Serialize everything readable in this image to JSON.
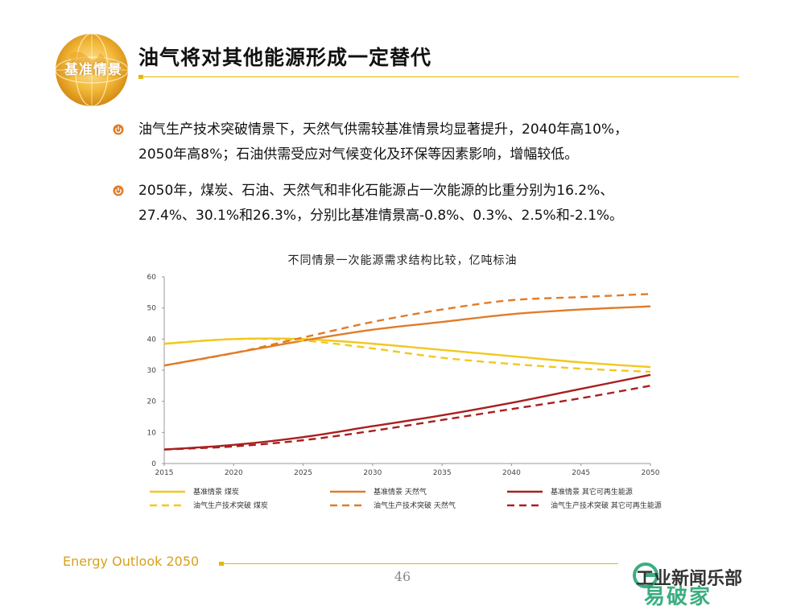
{
  "header": {
    "logo_label": "基准情景",
    "title": "油气将对其他能源形成一定替代"
  },
  "bullets": [
    {
      "line1": "油气生产技术突破情景下，天然气供需较基准情景均显著提升，2040年高10%，",
      "line2": "2050年高8%；石油供需受应对气候变化及环保等因素影响，增幅较低。"
    },
    {
      "line1": "2050年，煤炭、石油、天然气和非化石能源占一次能源的比重分别为16.2%、",
      "line2": "27.4%、30.1%和26.3%，分别比基准情景高-0.8%、0.3%、2.5%和-2.1%。"
    }
  ],
  "chart_data": {
    "type": "line",
    "title": "不同情景一次能源需求结构比较，亿吨标油",
    "xlabel": "",
    "ylabel": "",
    "x": [
      2015,
      2020,
      2025,
      2030,
      2035,
      2040,
      2045,
      2050
    ],
    "xlim": [
      2015,
      2050
    ],
    "ylim": [
      0,
      60
    ],
    "yticks": [
      0,
      10,
      20,
      30,
      40,
      50,
      60
    ],
    "grid": false,
    "legend": "bottom",
    "series": [
      {
        "name": "基准情景 煤炭",
        "color": "#f2c81e",
        "dash": false,
        "values": [
          38.5,
          40,
          40,
          38.5,
          36.5,
          34.5,
          32.5,
          31
        ]
      },
      {
        "name": "基准情景 天然气",
        "color": "#e07c28",
        "dash": false,
        "values": [
          31.5,
          35.5,
          39.5,
          43,
          45.5,
          48,
          49.5,
          50.5
        ]
      },
      {
        "name": "基准情景 其它可再生能源",
        "color": "#a8201e",
        "dash": false,
        "values": [
          4.5,
          6,
          8.5,
          12,
          15.5,
          19.5,
          24,
          28.5
        ]
      },
      {
        "name": "油气生产技术突破 煤炭",
        "color": "#f2c81e",
        "dash": true,
        "values": [
          38.5,
          40,
          39.5,
          37,
          34,
          32,
          30.5,
          29.5
        ]
      },
      {
        "name": "油气生产技术突破 天然气",
        "color": "#e07c28",
        "dash": true,
        "values": [
          31.5,
          35.5,
          40.5,
          45.5,
          49.5,
          52.5,
          53.5,
          54.5
        ]
      },
      {
        "name": "油气生产技术突破 其它可再生能源",
        "color": "#a8201e",
        "dash": true,
        "values": [
          4.5,
          5.5,
          7.5,
          10.5,
          14,
          17.5,
          21,
          25
        ]
      }
    ]
  },
  "footer": {
    "brand": "Energy Outlook 2050",
    "page_number": "46"
  },
  "watermark": {
    "line1": "工业新闻乐部",
    "line2": "易破家",
    "accent_color": "#1aa06a"
  }
}
